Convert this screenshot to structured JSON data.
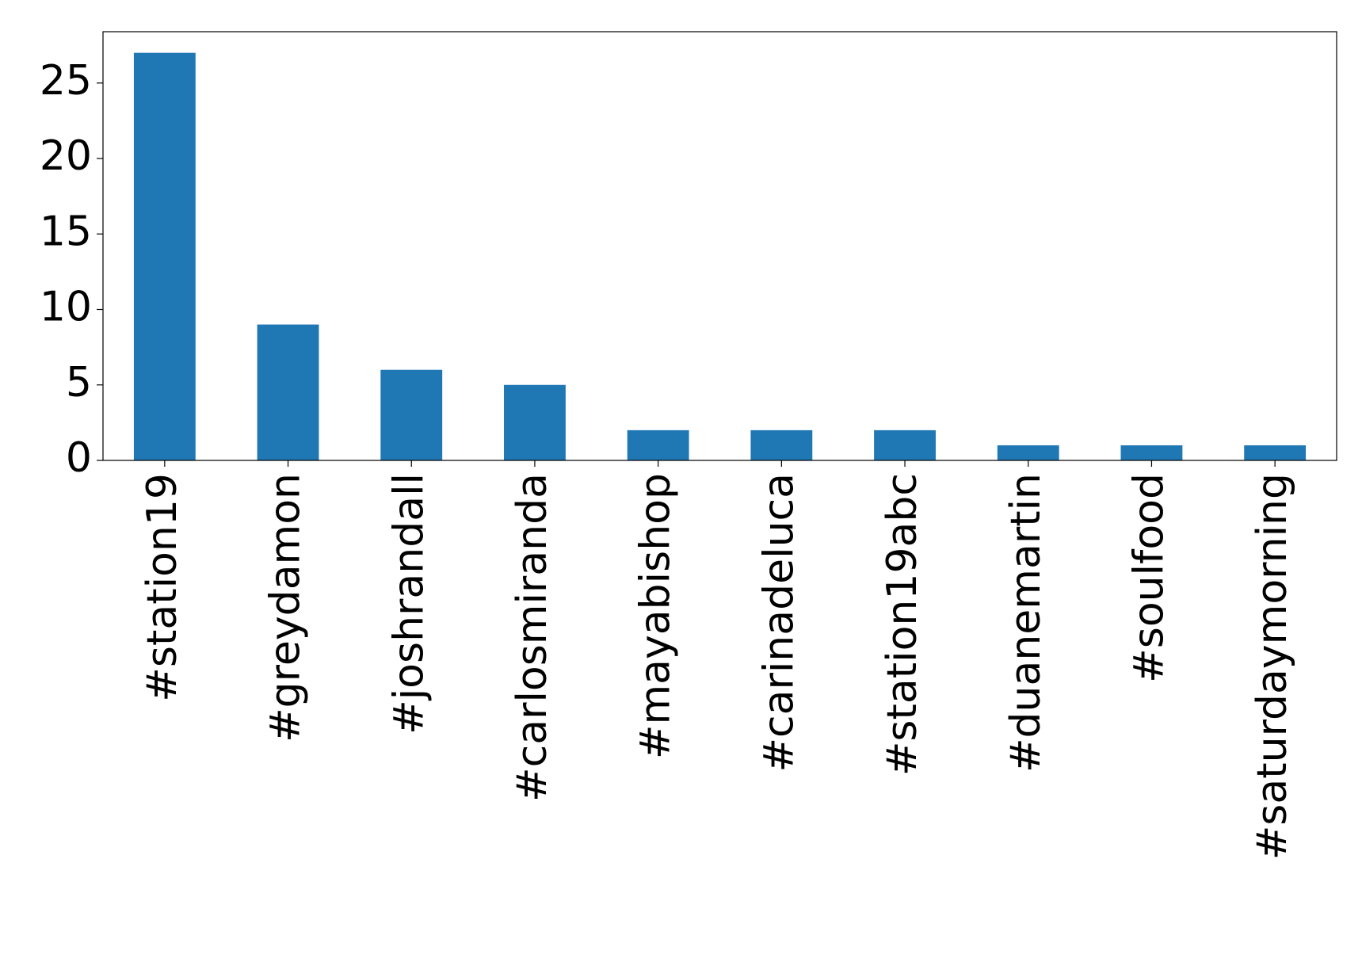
{
  "chart_data": {
    "type": "bar",
    "categories": [
      "#station19",
      "#greydamon",
      "#joshrandall",
      "#carlosmiranda",
      "#mayabishop",
      "#carinadeluca",
      "#station19abc",
      "#duanemartin",
      "#soulfood",
      "#saturdaymorning"
    ],
    "values": [
      27,
      9,
      6,
      5,
      2,
      2,
      2,
      1,
      1,
      1
    ],
    "color": "#1f77b4",
    "ylim": [
      0,
      28.4
    ],
    "yticks": [
      0,
      5,
      10,
      15,
      20,
      25
    ],
    "grid": false
  }
}
